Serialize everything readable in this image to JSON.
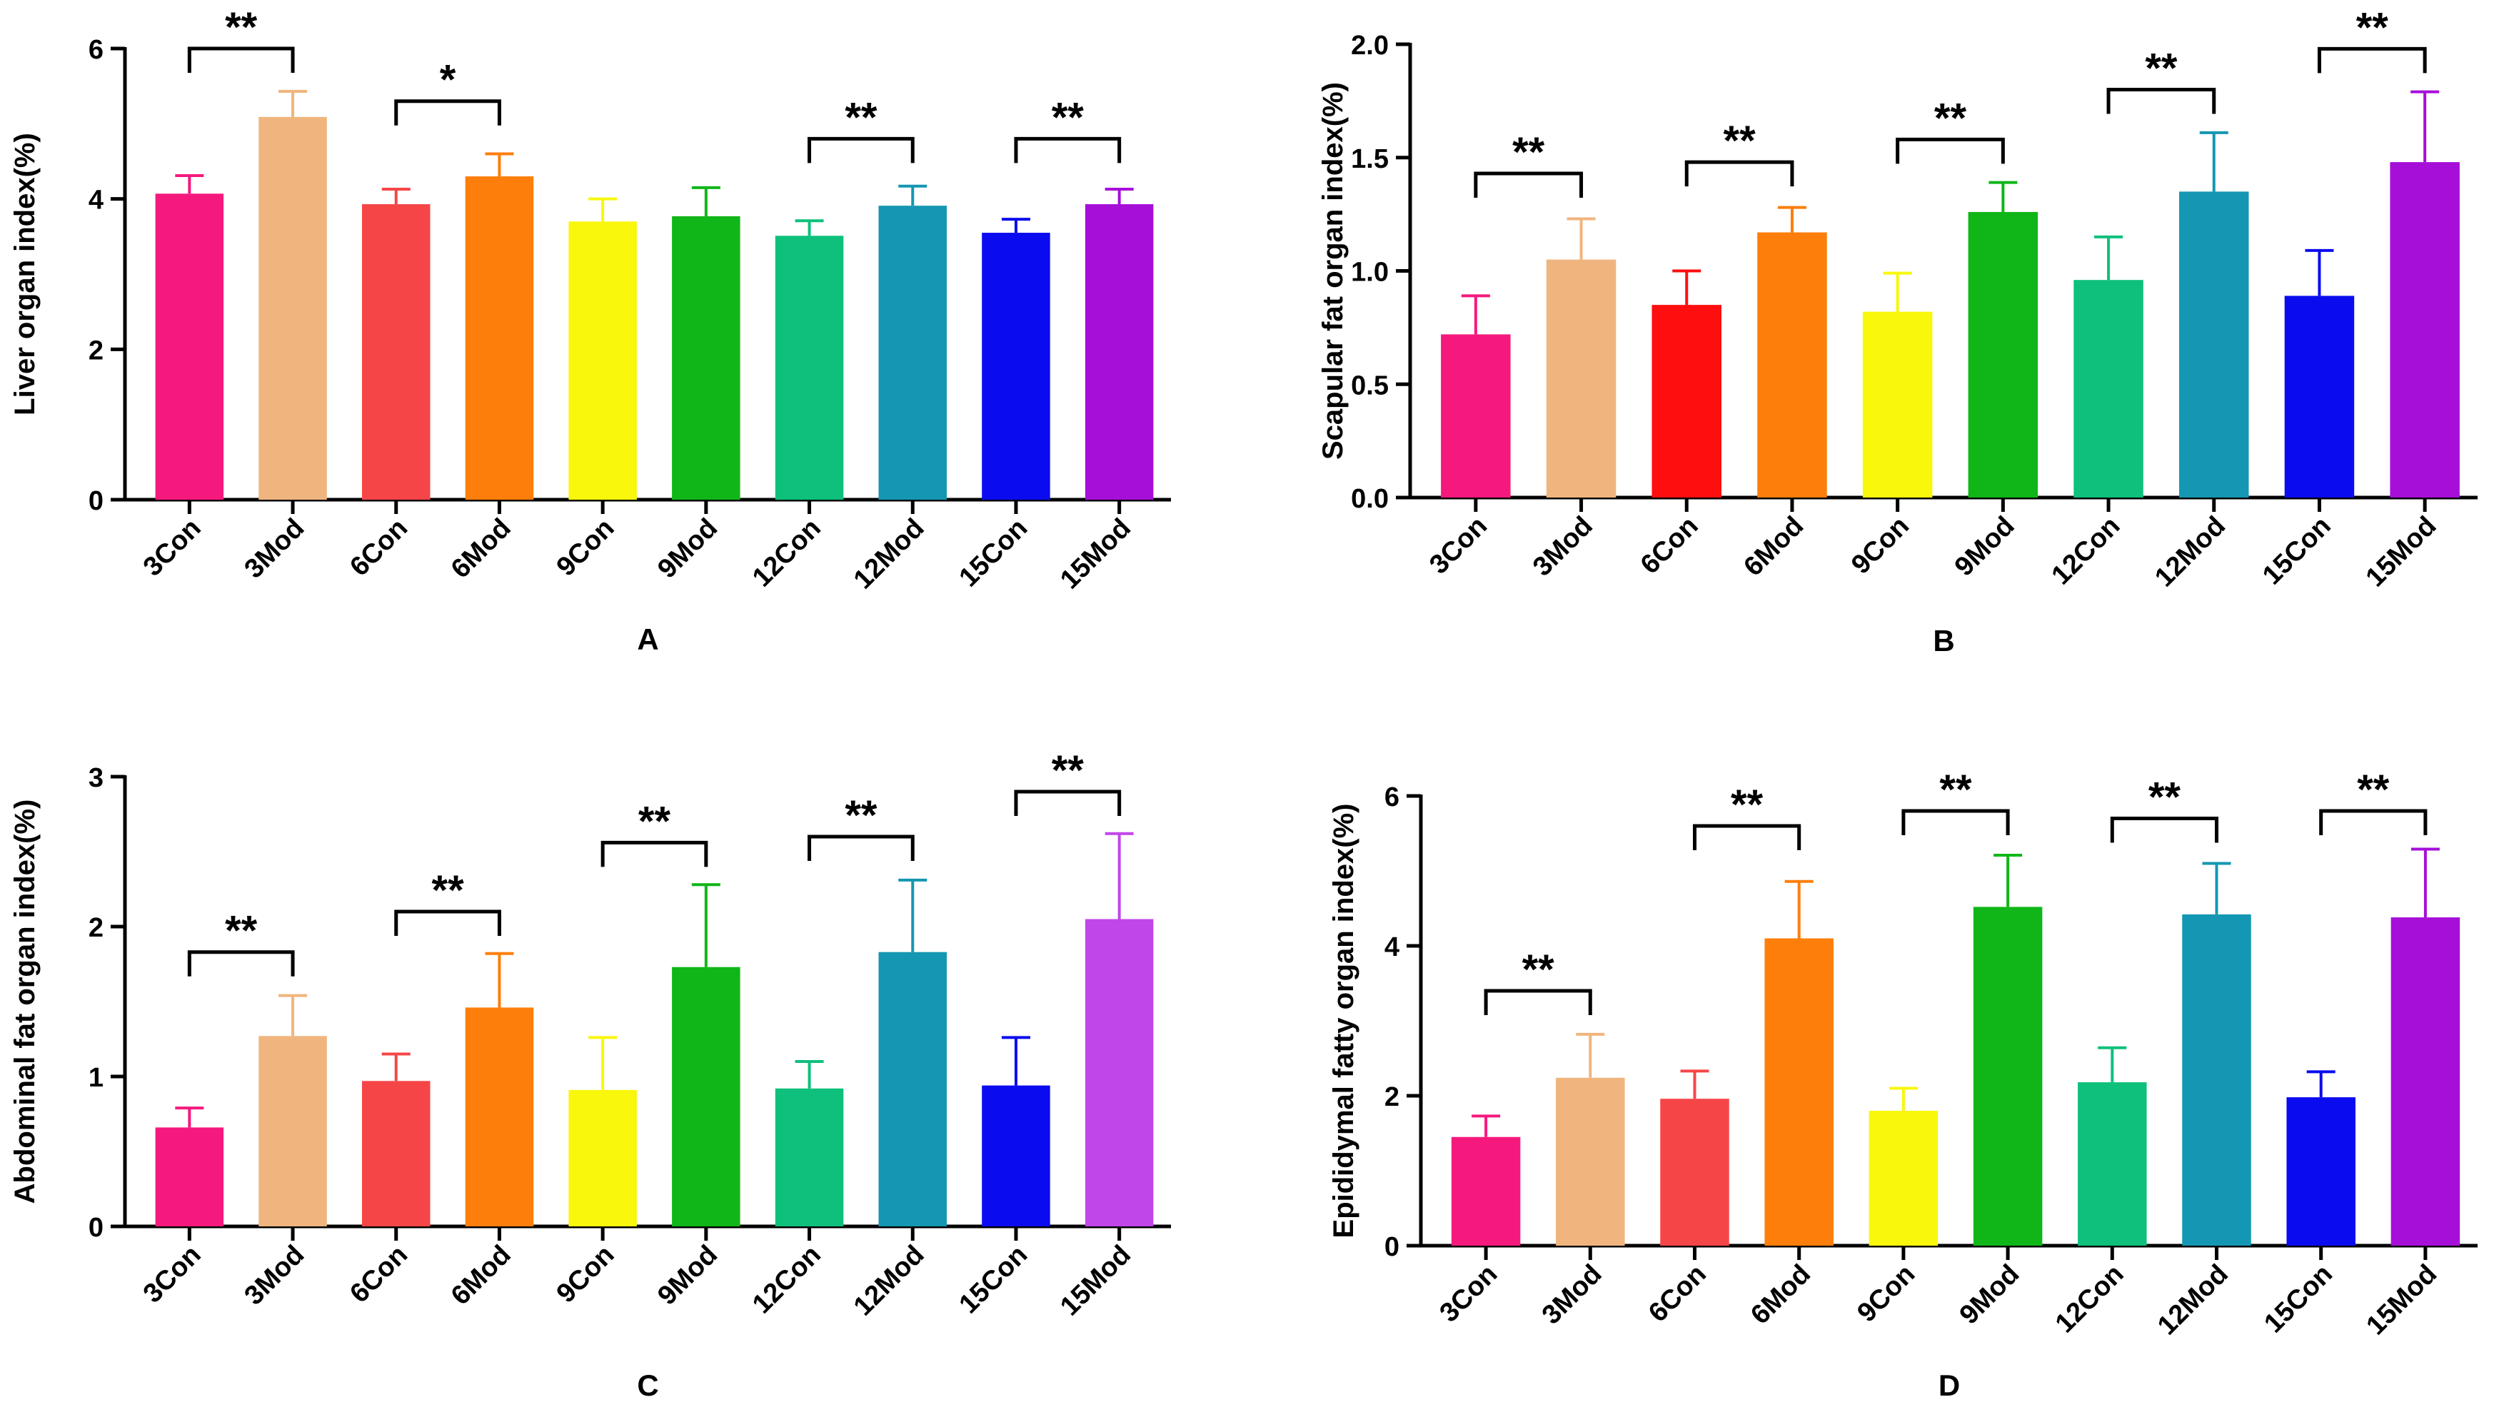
{
  "chart_data": [
    {
      "panel": "A",
      "type": "bar",
      "title": "",
      "xlabel": "A",
      "ylabel": "Liver organ index(%)",
      "ylim": [
        0,
        6
      ],
      "yticks": [
        0,
        2,
        4,
        6
      ],
      "categories": [
        "3Con",
        "3Mod",
        "6Con",
        "6Mod",
        "9Con",
        "9Mod",
        "12Con",
        "12Mod",
        "15Con",
        "15Mod"
      ],
      "values": [
        4.07,
        5.09,
        3.93,
        4.3,
        3.7,
        3.77,
        3.51,
        3.91,
        3.55,
        3.93
      ],
      "errors": [
        0.24,
        0.34,
        0.2,
        0.3,
        0.3,
        0.38,
        0.2,
        0.26,
        0.18,
        0.2
      ],
      "colors": [
        "#f5197d",
        "#f0b57e",
        "#f64547",
        "#fd7e0a",
        "#f8f70c",
        "#10b618",
        "#0ec07b",
        "#1497b2",
        "#0b0bef",
        "#a60fd8"
      ],
      "significance": [
        {
          "pair": [
            0,
            1
          ],
          "label": "**",
          "level": 6.0
        },
        {
          "pair": [
            2,
            3
          ],
          "label": "*",
          "level": 5.3
        },
        {
          "pair": [
            6,
            7
          ],
          "label": "**",
          "level": 4.8
        },
        {
          "pair": [
            8,
            9
          ],
          "label": "**",
          "level": 4.8
        }
      ]
    },
    {
      "panel": "B",
      "type": "bar",
      "title": "",
      "xlabel": "B",
      "ylabel": "Scapular fat organ index(%)",
      "ylim": [
        0,
        2.0
      ],
      "yticks": [
        0.0,
        0.5,
        1.0,
        1.5,
        2.0
      ],
      "tick_labels": [
        "0.0",
        "0.5",
        "1.0",
        "1.5",
        "2.0"
      ],
      "categories": [
        "3Con",
        "3Mod",
        "6Con",
        "6Mod",
        "9Con",
        "9Mod",
        "12Con",
        "12Mod",
        "15Con",
        "15Mod"
      ],
      "values": [
        0.72,
        1.05,
        0.85,
        1.17,
        0.82,
        1.26,
        0.96,
        1.35,
        0.89,
        1.48
      ],
      "errors": [
        0.17,
        0.18,
        0.15,
        0.11,
        0.17,
        0.13,
        0.19,
        0.26,
        0.2,
        0.31
      ],
      "colors": [
        "#f5197d",
        "#f0b57e",
        "#fe0e0e",
        "#fd7e0a",
        "#f8f70c",
        "#10b618",
        "#0ec07b",
        "#1497b2",
        "#0b0bef",
        "#a60fd8"
      ],
      "significance": [
        {
          "pair": [
            0,
            1
          ],
          "label": "**",
          "level": 1.43
        },
        {
          "pair": [
            2,
            3
          ],
          "label": "**",
          "level": 1.48
        },
        {
          "pair": [
            4,
            5
          ],
          "label": "**",
          "level": 1.58
        },
        {
          "pair": [
            6,
            7
          ],
          "label": "**",
          "level": 1.8
        },
        {
          "pair": [
            8,
            9
          ],
          "label": "**",
          "level": 1.98
        }
      ]
    },
    {
      "panel": "C",
      "type": "bar",
      "title": "",
      "xlabel": "C",
      "ylabel": "Abdominal fat organ index(%)",
      "ylim": [
        0,
        3
      ],
      "yticks": [
        0,
        1,
        2,
        3
      ],
      "categories": [
        "3Con",
        "3Mod",
        "6Con",
        "6Mod",
        "9Con",
        "9Mod",
        "12Con",
        "12Mod",
        "15Con",
        "15Mod"
      ],
      "values": [
        0.66,
        1.27,
        0.97,
        1.46,
        0.91,
        1.73,
        0.92,
        1.83,
        0.94,
        2.05
      ],
      "errors": [
        0.13,
        0.27,
        0.18,
        0.36,
        0.35,
        0.55,
        0.18,
        0.48,
        0.32,
        0.57
      ],
      "colors": [
        "#f5197d",
        "#f0b57e",
        "#f64547",
        "#fd7e0a",
        "#f8f70c",
        "#10b618",
        "#0ec07b",
        "#1497b2",
        "#0b0bef",
        "#c146ea"
      ],
      "significance": [
        {
          "pair": [
            0,
            1
          ],
          "label": "**",
          "level": 1.83
        },
        {
          "pair": [
            2,
            3
          ],
          "label": "**",
          "level": 2.1
        },
        {
          "pair": [
            4,
            5
          ],
          "label": "**",
          "level": 2.56
        },
        {
          "pair": [
            6,
            7
          ],
          "label": "**",
          "level": 2.6
        },
        {
          "pair": [
            8,
            9
          ],
          "label": "**",
          "level": 2.9
        }
      ]
    },
    {
      "panel": "D",
      "type": "bar",
      "title": "",
      "xlabel": "D",
      "ylabel": "Epididymal fatty organ index(%)",
      "ylim": [
        0,
        6
      ],
      "yticks": [
        0,
        2,
        4,
        6
      ],
      "categories": [
        "3Con",
        "3Mod",
        "6Con",
        "6Mod",
        "9Con",
        "9Mod",
        "12Con",
        "12Mod",
        "15Con",
        "15Mod"
      ],
      "values": [
        1.45,
        2.24,
        1.96,
        4.1,
        1.8,
        4.52,
        2.18,
        4.42,
        1.98,
        4.38
      ],
      "errors": [
        0.28,
        0.58,
        0.37,
        0.76,
        0.3,
        0.69,
        0.46,
        0.68,
        0.34,
        0.91
      ],
      "colors": [
        "#f5197d",
        "#f0b57e",
        "#f64547",
        "#fd7e0a",
        "#f8f70c",
        "#10b618",
        "#0ec07b",
        "#1497b2",
        "#0b0bef",
        "#a60fd8"
      ],
      "significance": [
        {
          "pair": [
            0,
            1
          ],
          "label": "**",
          "level": 3.4
        },
        {
          "pair": [
            2,
            3
          ],
          "label": "**",
          "level": 5.6
        },
        {
          "pair": [
            4,
            5
          ],
          "label": "**",
          "level": 5.8
        },
        {
          "pair": [
            6,
            7
          ],
          "label": "**",
          "level": 5.7
        },
        {
          "pair": [
            8,
            9
          ],
          "label": "**",
          "level": 5.8
        }
      ]
    }
  ]
}
